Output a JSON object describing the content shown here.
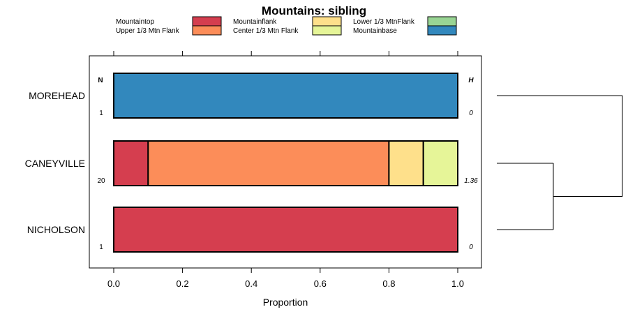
{
  "chart_data": {
    "type": "bar",
    "orientation": "horizontal",
    "stacked": true,
    "title": "Mountains: sibling",
    "xlabel": "Proportion",
    "ylabel": "",
    "xlim": [
      -0.07,
      1.07
    ],
    "xticks": [
      0.0,
      0.2,
      0.4,
      0.6,
      0.8,
      1.0
    ],
    "xtick_labels": [
      "0.0",
      "0.2",
      "0.4",
      "0.6",
      "0.8",
      "1.0"
    ],
    "n_header": "N",
    "h_header": "H",
    "legend_placement": "top",
    "legend": [
      {
        "name": "Mountaintop",
        "color": "#D53E4F"
      },
      {
        "name": "Upper 1/3 Mtn Flank",
        "color": "#FC8D59"
      },
      {
        "name": "Mountainflank",
        "color": "#FEE08B"
      },
      {
        "name": "Center 1/3 Mtn Flank",
        "color": "#E6F598"
      },
      {
        "name": "Lower 1/3 MtnFlank",
        "color": "#99D594"
      },
      {
        "name": "Mountainbase",
        "color": "#3288BD"
      }
    ],
    "categories": [
      "MOREHEAD",
      "CANEYVILLE",
      "NICHOLSON"
    ],
    "n_values": [
      "1",
      "20",
      "1"
    ],
    "h_values": [
      "0",
      "1.36",
      "0"
    ],
    "series": [
      {
        "name": "Mountaintop",
        "values": [
          0.0,
          0.1,
          1.0
        ]
      },
      {
        "name": "Upper 1/3 Mtn Flank",
        "values": [
          0.0,
          0.7,
          0.0
        ]
      },
      {
        "name": "Mountainflank",
        "values": [
          0.0,
          0.1,
          0.0
        ]
      },
      {
        "name": "Center 1/3 Mtn Flank",
        "values": [
          0.0,
          0.1,
          0.0
        ]
      },
      {
        "name": "Lower 1/3 MtnFlank",
        "values": [
          0.0,
          0.0,
          0.0
        ]
      },
      {
        "name": "Mountainbase",
        "values": [
          1.0,
          0.0,
          0.0
        ]
      }
    ],
    "dendrogram": {
      "leaves": [
        "MOREHEAD",
        "CANEYVILLE",
        "NICHOLSON"
      ],
      "merges": [
        {
          "a": "CANEYVILLE",
          "b": "NICHOLSON",
          "height": 0.45
        },
        {
          "a": "MOREHEAD",
          "b": "CANEYVILLE+NICHOLSON",
          "height": 1.0
        }
      ]
    }
  }
}
